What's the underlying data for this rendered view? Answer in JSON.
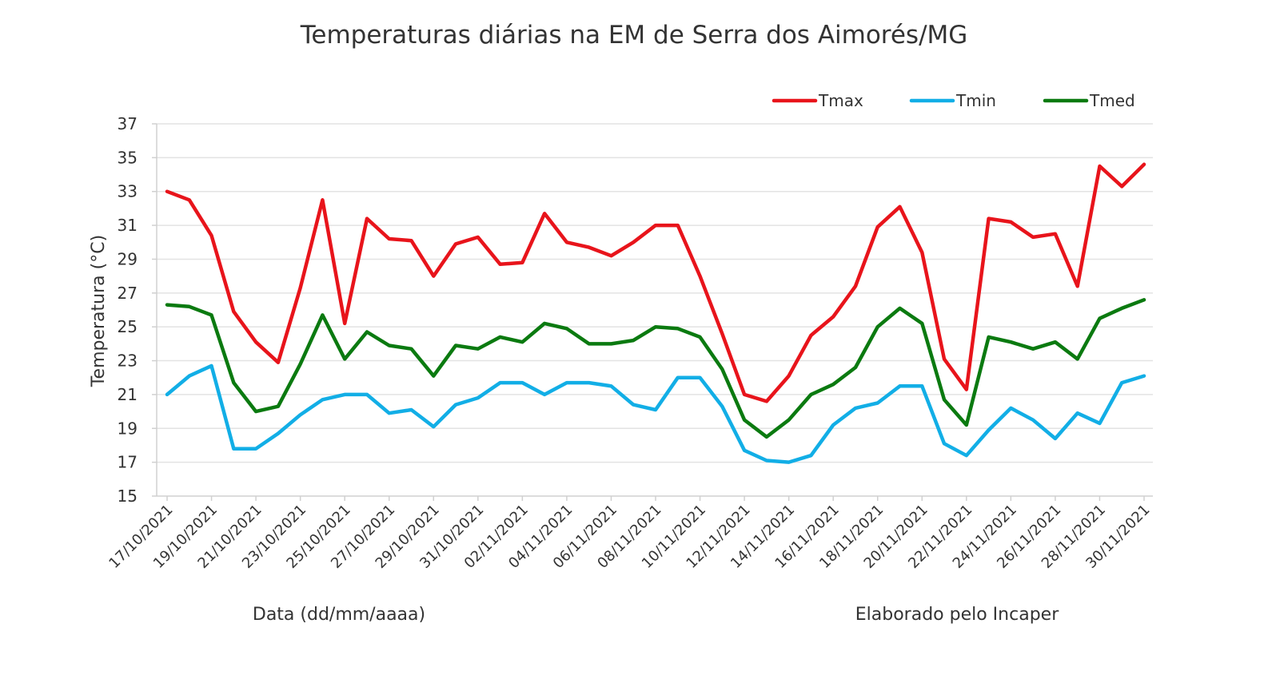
{
  "chart_data": {
    "type": "line",
    "title": "Temperaturas diárias na EM de Serra dos Aimorés/MG",
    "xlabel": "Data (dd/mm/aaaa)",
    "ylabel": "Temperatura (°C)",
    "note": "Elaborado pelo Incaper",
    "ylim": [
      15,
      37
    ],
    "yticks": [
      "15",
      "17",
      "19",
      "21",
      "23",
      "25",
      "27",
      "29",
      "31",
      "33",
      "35",
      "37"
    ],
    "grid": "horizontal",
    "legend_position": "top-right",
    "x": [
      "17/10/2021",
      "18/10/2021",
      "19/10/2021",
      "20/10/2021",
      "21/10/2021",
      "22/10/2021",
      "23/10/2021",
      "24/10/2021",
      "25/10/2021",
      "26/10/2021",
      "27/10/2021",
      "28/10/2021",
      "29/10/2021",
      "30/10/2021",
      "31/10/2021",
      "01/11/2021",
      "02/11/2021",
      "03/11/2021",
      "04/11/2021",
      "05/11/2021",
      "06/11/2021",
      "07/11/2021",
      "08/11/2021",
      "09/11/2021",
      "10/11/2021",
      "11/11/2021",
      "12/11/2021",
      "13/11/2021",
      "14/11/2021",
      "15/11/2021",
      "16/11/2021",
      "17/11/2021",
      "18/11/2021",
      "19/11/2021",
      "20/11/2021",
      "21/11/2021",
      "22/11/2021",
      "23/11/2021",
      "24/11/2021",
      "25/11/2021",
      "26/11/2021",
      "27/11/2021",
      "28/11/2021",
      "29/11/2021",
      "30/11/2021"
    ],
    "xtick_labels": [
      "17/10/2021",
      "19/10/2021",
      "21/10/2021",
      "23/10/2021",
      "25/10/2021",
      "27/10/2021",
      "29/10/2021",
      "31/10/2021",
      "02/11/2021",
      "04/11/2021",
      "06/11/2021",
      "08/11/2021",
      "10/11/2021",
      "12/11/2021",
      "14/11/2021",
      "16/11/2021",
      "18/11/2021",
      "20/11/2021",
      "22/11/2021",
      "24/11/2021",
      "26/11/2021",
      "28/11/2021",
      "30/11/2021"
    ],
    "series": [
      {
        "name": "Tmax",
        "color": "#e8141b",
        "values": [
          33.0,
          32.5,
          30.4,
          25.9,
          24.1,
          22.9,
          27.3,
          32.5,
          25.2,
          31.4,
          30.2,
          30.1,
          28.0,
          29.9,
          30.3,
          28.7,
          28.8,
          31.7,
          30.0,
          29.7,
          29.2,
          30.0,
          31.0,
          31.0,
          28.0,
          24.6,
          21.0,
          20.6,
          22.1,
          24.5,
          25.6,
          27.4,
          30.9,
          32.1,
          29.4,
          23.1,
          21.3,
          31.4,
          31.2,
          30.3,
          30.5,
          27.4,
          34.5,
          33.3,
          34.6
        ]
      },
      {
        "name": "Tmin",
        "color": "#12aee6",
        "values": [
          21.0,
          22.1,
          22.7,
          17.8,
          17.8,
          18.7,
          19.8,
          20.7,
          21.0,
          21.0,
          19.9,
          20.1,
          19.1,
          20.4,
          20.8,
          21.7,
          21.7,
          21.0,
          21.7,
          21.7,
          21.5,
          20.4,
          20.1,
          22.0,
          22.0,
          20.3,
          17.7,
          17.1,
          17.0,
          17.4,
          19.2,
          20.2,
          20.5,
          21.5,
          21.5,
          18.1,
          17.4,
          18.9,
          20.2,
          19.5,
          18.4,
          19.9,
          19.3,
          21.7,
          22.1
        ]
      },
      {
        "name": "Tmed",
        "color": "#0b7a10",
        "values": [
          26.3,
          26.2,
          25.7,
          21.7,
          20.0,
          20.3,
          22.8,
          25.7,
          23.1,
          24.7,
          23.9,
          23.7,
          22.1,
          23.9,
          23.7,
          24.4,
          24.1,
          25.2,
          24.9,
          24.0,
          24.0,
          24.2,
          25.0,
          24.9,
          24.4,
          22.5,
          19.5,
          18.5,
          19.5,
          21.0,
          21.6,
          22.6,
          25.0,
          26.1,
          25.2,
          20.7,
          19.2,
          24.4,
          24.1,
          23.7,
          24.1,
          23.1,
          25.5,
          26.1,
          26.6
        ]
      }
    ]
  }
}
